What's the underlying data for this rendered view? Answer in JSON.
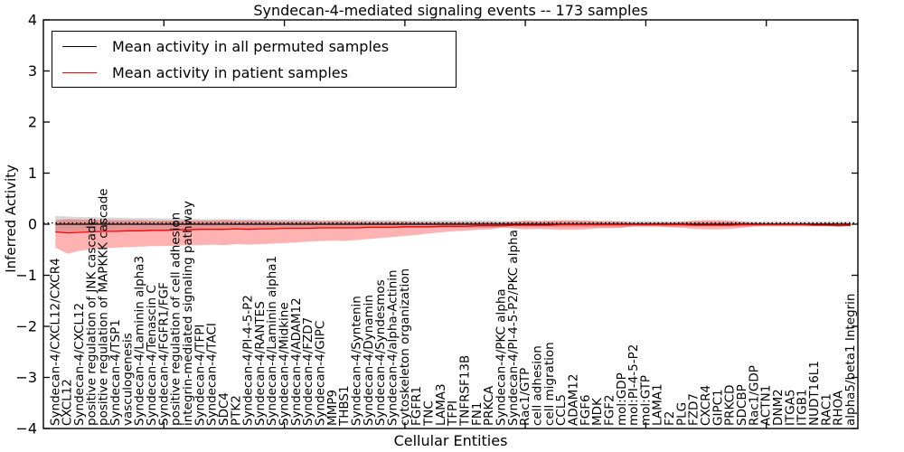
{
  "legend": {
    "entries": [
      {
        "label": "Mean activity in all permuted samples",
        "color": "#000000"
      },
      {
        "label": "Mean activity in patient samples",
        "color": "#ff0000"
      }
    ]
  },
  "chart_data": {
    "type": "line",
    "title": "Syndecan-4-mediated signaling events -- 173 samples",
    "xlabel": "Cellular Entities",
    "ylabel": "Inferred Activity",
    "ylim": [
      -4,
      4
    ],
    "yticks": [
      4,
      3,
      2,
      1,
      0,
      -1,
      -2,
      -3,
      -4
    ],
    "xticks_major": [
      10,
      20,
      30,
      40,
      50,
      60
    ],
    "grid": false,
    "legend_position": "upper left",
    "categories": [
      "Syndecan-4/CXCL12/CXCR4",
      "CXCL12",
      "Syndecan-4/CXCL12",
      "positive regulation of JNK cascade",
      "positive regulation of MAPKKK cascade",
      "Syndecan-4/TSP1",
      "vasculogenesis",
      "Syndecan-4/Laminin alpha3",
      "Syndecan-4/Tenascin C",
      "Syndecan-4/FGFR1/FGF",
      "positive regulation of cell adhesion",
      "integrin-mediated signaling pathway",
      "Syndecan-4/TFPI",
      "Syndecan-4/TACI",
      "SDC4",
      "PTK2",
      "Syndecan-4/PI-4-5-P2",
      "Syndecan-4/RANTES",
      "Syndecan-4/Laminin alpha1",
      "Syndecan-4/Midkine",
      "Syndecan-4/ADAM12",
      "Syndecan-4/FZD7",
      "Syndecan-4/GIPC",
      "MMP9",
      "THBS1",
      "Syndecan-4/Syntenin",
      "Syndecan-4/Dynamin",
      "Syndecan-4/Syndesmos",
      "Syndecan-4/alpha-Actinin",
      "cytoskeleton organization",
      "FGFR1",
      "TNC",
      "LAMA3",
      "TFPI",
      "TNFRSF13B",
      "FN1",
      "PRKCA",
      "Syndecan-4/PKC alpha",
      "Syndecan-4/PI-4-5-P2/PKC alpha",
      "Rac1/GTP",
      "cell adhesion",
      "cell migration",
      "CCL5",
      "ADAM12",
      "FGF6",
      "MDK",
      "FGF2",
      "mol:GDP",
      "mol:PI-4-5-P2",
      "mol:GTP",
      "LAMA1",
      "F2",
      "PLG",
      "FZD7",
      "CXCR4",
      "GIPC1",
      "PRKCD",
      "SDCBP",
      "Rac1/GDP",
      "ACTN1",
      "DNM2",
      "ITGA5",
      "ITGB1",
      "NUDT16L1",
      "RAC1",
      "RHOA",
      "alpha5/beta1 Integrin"
    ],
    "series": [
      {
        "name": "Mean activity in all permuted samples",
        "color": "#000000",
        "values": [
          0,
          0,
          0,
          0,
          0,
          0,
          0,
          0,
          0,
          0,
          0,
          0,
          0,
          0,
          0,
          0,
          0,
          0,
          0,
          0,
          0,
          0,
          0,
          0,
          0,
          0,
          0,
          0,
          0,
          0,
          0,
          0,
          0,
          0,
          0,
          0,
          0,
          0,
          0,
          0,
          0,
          0,
          0,
          0,
          0,
          0,
          0,
          0,
          0,
          0,
          0,
          0,
          0,
          0,
          0,
          0,
          0,
          0,
          0,
          0,
          0,
          0,
          0,
          0,
          0,
          0,
          0
        ]
      },
      {
        "name": "Mean activity in patient samples",
        "color": "#ff0000",
        "values": [
          -0.15,
          -0.17,
          -0.16,
          -0.15,
          -0.14,
          -0.14,
          -0.13,
          -0.13,
          -0.12,
          -0.12,
          -0.11,
          -0.11,
          -0.1,
          -0.1,
          -0.1,
          -0.09,
          -0.1,
          -0.09,
          -0.09,
          -0.08,
          -0.08,
          -0.08,
          -0.07,
          -0.07,
          -0.07,
          -0.07,
          -0.06,
          -0.06,
          -0.06,
          -0.05,
          -0.05,
          -0.05,
          -0.04,
          -0.04,
          -0.04,
          -0.03,
          -0.03,
          -0.03,
          -0.02,
          -0.02,
          -0.02,
          -0.02,
          -0.01,
          -0.01,
          -0.01,
          -0.01,
          -0.01,
          -0.01,
          -0.01,
          -0.01,
          -0.01,
          -0.01,
          -0.01,
          -0.02,
          -0.02,
          -0.02,
          -0.02,
          -0.01,
          -0.01,
          -0.01,
          -0.01,
          -0.01,
          -0.01,
          -0.02,
          -0.02,
          -0.03,
          -0.02
        ]
      }
    ],
    "bands": [
      {
        "name": "permuted-samples-range",
        "color": "#7f7f7f",
        "opacity": 0.32,
        "half": [
          0.16,
          0.15,
          0.14,
          0.14,
          0.13,
          0.13,
          0.12,
          0.12,
          0.12,
          0.11,
          0.11,
          0.11,
          0.1,
          0.1,
          0.1,
          0.1,
          0.1,
          0.09,
          0.09,
          0.09,
          0.09,
          0.09,
          0.08,
          0.08,
          0.08,
          0.08,
          0.08,
          0.08,
          0.08,
          0.07,
          0.07,
          0.07,
          0.07,
          0.07,
          0.07,
          0.07,
          0.07,
          0.06,
          0.06,
          0.06,
          0.06,
          0.06,
          0.06,
          0.06,
          0.06,
          0.06,
          0.06,
          0.06,
          0.06,
          0.06,
          0.06,
          0.05,
          0.05,
          0.05,
          0.05,
          0.05,
          0.05,
          0.05,
          0.05,
          0.05,
          0.05,
          0.05,
          0.05,
          0.05,
          0.05,
          0.05,
          0.05
        ]
      },
      {
        "name": "patient-samples-range",
        "color": "#ff0000",
        "opacity": 0.3,
        "upper": [
          0.08,
          0.1,
          0.09,
          0.09,
          0.08,
          0.08,
          0.08,
          0.08,
          0.07,
          0.07,
          0.07,
          0.07,
          0.07,
          0.07,
          0.08,
          0.07,
          0.07,
          0.07,
          0.06,
          0.06,
          0.06,
          0.06,
          0.06,
          0.06,
          0.06,
          0.05,
          0.05,
          0.05,
          0.05,
          0.05,
          0.04,
          0.04,
          0.04,
          0.04,
          0.04,
          0.04,
          0.04,
          0.04,
          0.05,
          0.07,
          0.06,
          0.07,
          0.08,
          0.08,
          0.07,
          0.06,
          0.06,
          0.05,
          0.03,
          0.03,
          0.03,
          0.04,
          0.05,
          0.07,
          0.08,
          0.08,
          0.07,
          0.05,
          0.03,
          0.02,
          0.02,
          0.02,
          0.02,
          0.02,
          0.02,
          0.02,
          0.02
        ],
        "lower": [
          -0.46,
          -0.58,
          -0.52,
          -0.49,
          -0.47,
          -0.46,
          -0.45,
          -0.44,
          -0.43,
          -0.43,
          -0.42,
          -0.41,
          -0.41,
          -0.4,
          -0.41,
          -0.39,
          -0.4,
          -0.39,
          -0.38,
          -0.37,
          -0.36,
          -0.34,
          -0.33,
          -0.32,
          -0.33,
          -0.31,
          -0.29,
          -0.27,
          -0.25,
          -0.23,
          -0.21,
          -0.18,
          -0.16,
          -0.14,
          -0.13,
          -0.11,
          -0.1,
          -0.07,
          -0.08,
          -0.1,
          -0.09,
          -0.1,
          -0.11,
          -0.11,
          -0.1,
          -0.08,
          -0.08,
          -0.07,
          -0.04,
          -0.04,
          -0.04,
          -0.06,
          -0.07,
          -0.09,
          -0.1,
          -0.1,
          -0.09,
          -0.07,
          -0.04,
          -0.03,
          -0.03,
          -0.03,
          -0.03,
          -0.03,
          -0.03,
          -0.04,
          -0.04
        ]
      }
    ],
    "zero_line": {
      "style": "dotted",
      "color": "#000000",
      "y": 0.025
    }
  }
}
